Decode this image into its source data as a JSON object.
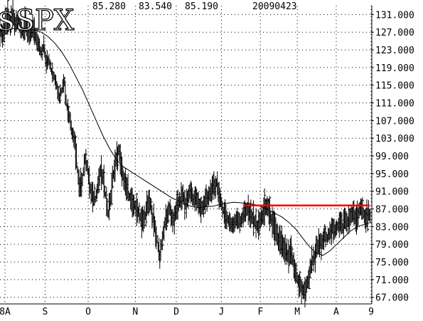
{
  "chart_data": {
    "type": "line",
    "title": "$SPX",
    "header_values": [
      "85.280",
      "83.540",
      "85.190",
      "20090423"
    ],
    "y_ticks": [
      "131.000",
      "127.000",
      "123.000",
      "119.000",
      "115.000",
      "111.000",
      "107.000",
      "103.000",
      "99.000",
      "95.000",
      "91.000",
      "87.000",
      "83.000",
      "79.000",
      "75.000",
      "71.000",
      "67.000"
    ],
    "x_ticks": [
      "8A",
      "S",
      "O",
      "N",
      "D",
      "J",
      "F",
      "M",
      "A",
      "9"
    ],
    "ylim": [
      65.5,
      133
    ],
    "grid": true,
    "resistance_level": 87.8,
    "series": [
      {
        "type": "hlc-bar",
        "x_range": [
          0,
          260
        ],
        "values": [
          128,
          126,
          128,
          130,
          129,
          131,
          129,
          130,
          128,
          127,
          129,
          126,
          127,
          128,
          126,
          124,
          122,
          124,
          120,
          121,
          118,
          117,
          115,
          112,
          114,
          116,
          110,
          108,
          104,
          102,
          96,
          92,
          94,
          98,
          96,
          92,
          90,
          89,
          92,
          96,
          94,
          90,
          86,
          90,
          95,
          98,
          100,
          97,
          94,
          92,
          90,
          89,
          88,
          87,
          86,
          84,
          85,
          87,
          89,
          86,
          83,
          80,
          76,
          80,
          84,
          86,
          87,
          84,
          86,
          88,
          89,
          90,
          88,
          90,
          91,
          89,
          90,
          88,
          87,
          88,
          89,
          90,
          91,
          92,
          93,
          90,
          88,
          86,
          85,
          84,
          83,
          84,
          85,
          84,
          85,
          86,
          87,
          86,
          85,
          84,
          83,
          84,
          86,
          88,
          87,
          85,
          84,
          82,
          80,
          80,
          78,
          77,
          76,
          78,
          74,
          72,
          70,
          69,
          68,
          70,
          72,
          75,
          76,
          78,
          79,
          80,
          81,
          80,
          82,
          83,
          82,
          83,
          84,
          83,
          85,
          84,
          85,
          86,
          85,
          86,
          87,
          86,
          85,
          86,
          85.19
        ]
      },
      {
        "type": "line",
        "name": "",
        "x_range": [
          0,
          260
        ],
        "values": [
          127.5,
          127.6,
          127.8,
          127.9,
          127.8,
          127.5,
          127,
          126,
          124.5,
          122.5,
          120,
          117,
          114,
          110.5,
          107,
          103.5,
          100.5,
          98,
          96.5,
          95.5,
          94.5,
          93.5,
          92.5,
          91.5,
          90.5,
          89.5,
          88.8,
          88,
          87.5,
          87.3,
          87.5,
          87.6,
          88,
          88.3,
          88.5,
          88.4,
          88.2,
          88,
          87.5,
          86.8,
          86,
          85.2,
          84,
          82.5,
          80.5,
          78.5,
          77,
          76.5,
          77.5,
          79,
          80.5,
          82,
          83,
          83.5,
          84
        ]
      }
    ]
  }
}
